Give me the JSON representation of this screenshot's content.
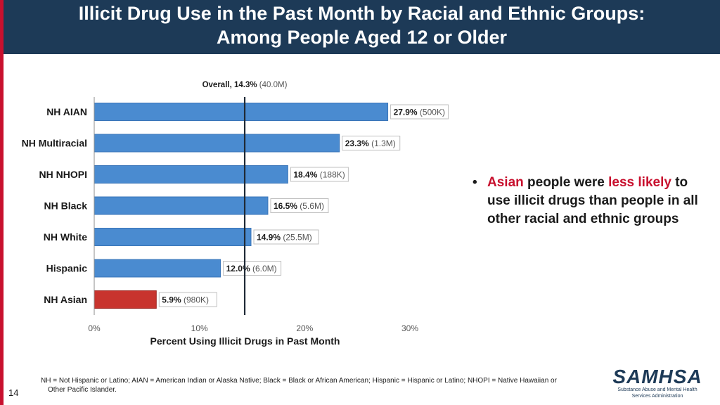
{
  "slide": {
    "title_line1": "Illicit Drug Use in the Past Month by Racial and Ethnic Groups:",
    "title_line2": "Among People Aged 12 or Older",
    "page_number": "14"
  },
  "bullet": {
    "w1": "Asian",
    "w2": " people were ",
    "w3": "less likely",
    "w4": " to use illicit drugs than people in all other racial and ethnic groups"
  },
  "footnote": {
    "line1": "NH = Not Hispanic or Latino; AIAN = American Indian or Alaska Native; Black = Black or African American; Hispanic = Hispanic or Latino; NHOPI = Native Hawaiian or",
    "line2": "Other Pacific Islander."
  },
  "logo": {
    "word": "SAMHSA",
    "sub1": "Substance Abuse and Mental Health",
    "sub2": "Services Administration"
  },
  "colors": {
    "header": "#1d3a57",
    "bar": "#4a8bd0",
    "highlight_bar": "#c8342e",
    "accent_red": "#c8102e"
  },
  "chart_data": {
    "type": "bar",
    "orientation": "horizontal",
    "categories": [
      "NH AIAN",
      "NH Multiracial",
      "NH NHOPI",
      "NH Black",
      "NH White",
      "Hispanic",
      "NH Asian"
    ],
    "values": [
      27.9,
      23.3,
      18.4,
      16.5,
      14.9,
      12.0,
      5.9
    ],
    "value_labels": [
      "27.9%",
      "23.3%",
      "18.4%",
      "16.5%",
      "14.9%",
      "12.0%",
      "5.9%"
    ],
    "count_labels": [
      "(500K)",
      "(1.3M)",
      "(188K)",
      "(5.6M)",
      "(25.5M)",
      "(6.0M)",
      "(980K)"
    ],
    "highlight": "NH Asian",
    "reference_line": {
      "value": 14.3,
      "label": "Overall, 14.3%",
      "count": "(40.0M)"
    },
    "xlim": [
      0,
      30
    ],
    "xticks": [
      0,
      10,
      20,
      30
    ],
    "xtick_labels": [
      "0%",
      "10%",
      "20%",
      "30%"
    ],
    "xlabel": "Percent Using Illicit Drugs in Past Month",
    "grid": false
  }
}
